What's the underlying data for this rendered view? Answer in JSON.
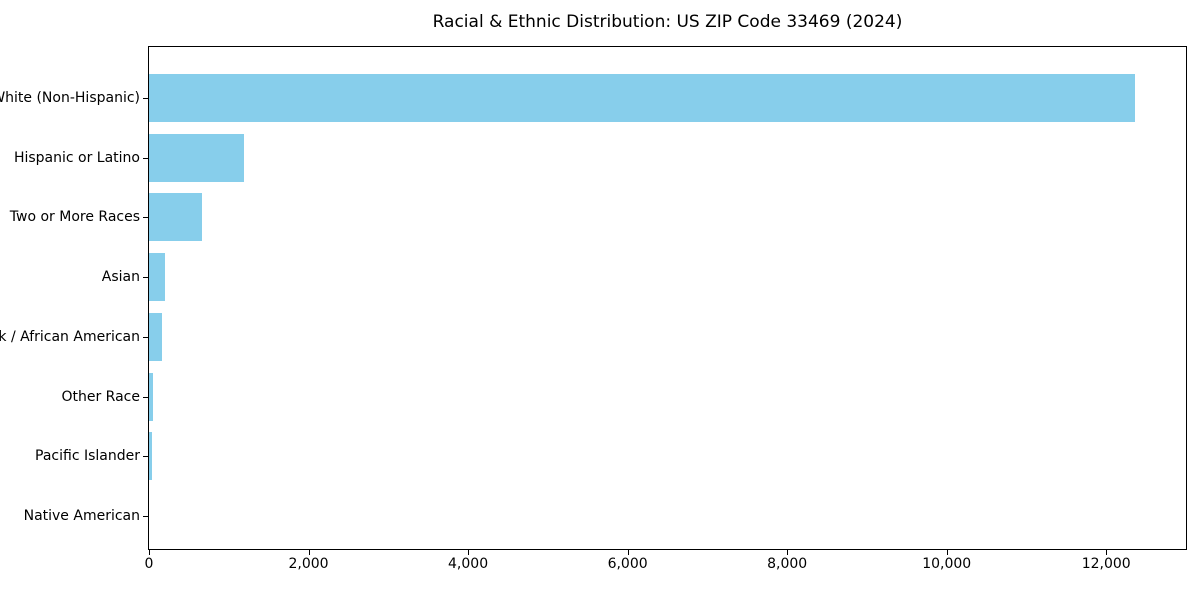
{
  "chart_data": {
    "type": "bar",
    "orientation": "horizontal",
    "title": "Racial & Ethnic Distribution: US ZIP Code 33469 (2024)",
    "categories": [
      "White (Non-Hispanic)",
      "Hispanic or Latino",
      "Two or More Races",
      "Asian",
      "Black / African American",
      "Other Race",
      "Pacific Islander",
      "Native American"
    ],
    "values": [
      12360,
      1195,
      665,
      205,
      160,
      48,
      38,
      0
    ],
    "xlabel": "",
    "ylabel": "",
    "xlim": [
      0,
      13000
    ],
    "x_ticks": [
      0,
      2000,
      4000,
      6000,
      8000,
      10000,
      12000
    ],
    "x_tick_labels": [
      "0",
      "2,000",
      "4,000",
      "6,000",
      "8,000",
      "10,000",
      "12,000"
    ],
    "bar_color": "#87CEEB",
    "background_color": "#ffffff",
    "grid": false,
    "legend": null
  }
}
